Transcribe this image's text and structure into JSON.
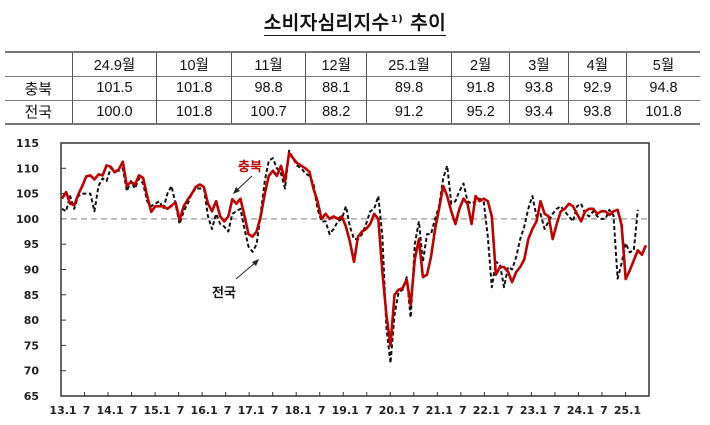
{
  "title": {
    "main": "소비자심리지수",
    "footnote": "1)",
    "suffix": "추이"
  },
  "table": {
    "columns": [
      "24.9월",
      "10월",
      "11월",
      "12월",
      "25.1월",
      "2월",
      "3월",
      "4월",
      "5월"
    ],
    "rows": [
      {
        "label": "충북",
        "values": [
          "101.5",
          "101.8",
          "98.8",
          "88.1",
          "89.8",
          "91.8",
          "93.8",
          "92.9",
          "94.8"
        ]
      },
      {
        "label": "전국",
        "values": [
          "100.0",
          "101.8",
          "100.7",
          "88.2",
          "91.2",
          "95.2",
          "93.4",
          "93.8",
          "101.8"
        ]
      }
    ]
  },
  "colors": {
    "chungbuk": "#c00000",
    "national": "#111111",
    "reference": "#999999",
    "axis": "#333333"
  },
  "chart_data": {
    "type": "line",
    "title": "소비자심리지수 추이",
    "xlabel": "",
    "ylabel": "",
    "ylim": [
      65,
      115
    ],
    "yticks": [
      65,
      70,
      75,
      80,
      85,
      90,
      95,
      100,
      105,
      110,
      115
    ],
    "xtick_labels": [
      "13.1",
      "7",
      "14.1",
      "7",
      "15.1",
      "7",
      "16.1",
      "7",
      "17.1",
      "7",
      "18.1",
      "7",
      "19.1",
      "7",
      "20.1",
      "7",
      "21.1",
      "7",
      "22.1",
      "7",
      "23.1",
      "7",
      "24.1",
      "7",
      "25.1"
    ],
    "x_start": "2013.01",
    "x_end": "2025.05",
    "frequency": "monthly",
    "reference_line": 100,
    "grid": false,
    "annotations": [
      {
        "text": "충북",
        "series": "충북"
      },
      {
        "text": "전국",
        "series": "전국"
      }
    ],
    "series": [
      {
        "name": "충북",
        "style": "solid",
        "color": "#c00000",
        "values": [
          104.0,
          105.3,
          103.0,
          102.7,
          104.8,
          106.5,
          108.4,
          108.6,
          107.8,
          108.8,
          108.6,
          110.6,
          110.3,
          109.2,
          109.8,
          111.3,
          106.5,
          107.3,
          106.8,
          108.6,
          108.1,
          104.5,
          101.4,
          102.5,
          102.5,
          102.5,
          102.0,
          102.6,
          103.3,
          99.8,
          102.5,
          103.8,
          105.0,
          106.3,
          106.8,
          106.3,
          103.0,
          101.5,
          103.5,
          100.5,
          99.5,
          100.5,
          103.9,
          103.0,
          104.0,
          100.6,
          97.0,
          96.5,
          97.5,
          100.5,
          105.0,
          108.5,
          109.5,
          108.5,
          110.5,
          107.5,
          113.0,
          112.0,
          111.0,
          110.5,
          110.0,
          109.3,
          106.0,
          103.5,
          100.0,
          101.0,
          100.0,
          100.5,
          100.0,
          100.5,
          98.5,
          95.5,
          91.5,
          96.5,
          97.5,
          98.0,
          99.0,
          101.0,
          100.0,
          89.5,
          81.0,
          75.0,
          85.0,
          86.0,
          86.3,
          88.0,
          83.0,
          92.0,
          96.0,
          88.5,
          89.0,
          92.5,
          98.0,
          102.0,
          106.5,
          104.5,
          101.5,
          99.0,
          102.0,
          104.0,
          103.0,
          99.0,
          104.5,
          103.5,
          104.0,
          103.5,
          100.5,
          89.0,
          90.5,
          90.5,
          89.5,
          87.5,
          89.5,
          90.5,
          92.0,
          96.0,
          98.0,
          99.5,
          103.5,
          101.0,
          100.5,
          96.0,
          99.0,
          101.5,
          102.0,
          103.0,
          102.5,
          101.0,
          99.5,
          101.5,
          102.0,
          102.0,
          101.0,
          101.5,
          101.5,
          100.8,
          101.5,
          101.8,
          98.8,
          88.1,
          89.8,
          91.8,
          93.8,
          92.9,
          94.8
        ]
      },
      {
        "name": "전국",
        "style": "dashed",
        "color": "#111111",
        "values": [
          102.0,
          101.5,
          104.5,
          102.0,
          104.5,
          105.0,
          105.0,
          105.0,
          101.5,
          106.5,
          108.0,
          107.5,
          110.0,
          109.5,
          109.5,
          110.0,
          105.5,
          107.5,
          106.0,
          108.0,
          107.0,
          103.5,
          102.5,
          103.0,
          103.5,
          102.0,
          105.0,
          106.5,
          103.0,
          99.0,
          101.5,
          103.0,
          105.0,
          106.0,
          106.0,
          106.0,
          100.5,
          98.0,
          101.0,
          99.0,
          98.5,
          97.5,
          101.0,
          101.5,
          102.0,
          98.0,
          94.5,
          93.5,
          95.0,
          101.0,
          107.5,
          111.5,
          112.0,
          110.0,
          109.0,
          106.0,
          113.5,
          112.0,
          110.5,
          110.0,
          109.0,
          108.5,
          107.0,
          102.0,
          99.5,
          99.5,
          97.0,
          98.0,
          99.5,
          100.0,
          102.5,
          98.5,
          96.0,
          96.0,
          97.0,
          99.0,
          101.5,
          102.0,
          104.5,
          96.5,
          78.5,
          71.5,
          81.0,
          85.5,
          86.0,
          88.5,
          80.5,
          95.0,
          99.5,
          91.5,
          97.0,
          97.0,
          100.0,
          102.5,
          108.0,
          110.5,
          103.0,
          103.5,
          105.5,
          107.0,
          103.5,
          103.0,
          103.5,
          104.0,
          103.5,
          96.5,
          86.5,
          91.5,
          91.0,
          86.5,
          90.5,
          90.0,
          92.5,
          96.0,
          98.5,
          102.0,
          104.5,
          100.5,
          101.0,
          98.0,
          99.5,
          101.0,
          102.0,
          102.5,
          101.5,
          100.5,
          99.5,
          102.5,
          103.0,
          101.0,
          100.5,
          101.5,
          100.5,
          100.0,
          100.0,
          101.8,
          100.7,
          88.2,
          91.2,
          95.2,
          93.4,
          93.8,
          101.8
        ]
      }
    ]
  }
}
